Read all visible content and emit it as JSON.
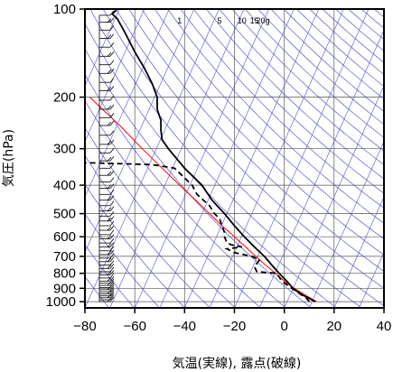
{
  "chart_data": {
    "type": "line",
    "title": "",
    "xlabel": "気温(実線), 露点(破線)",
    "ylabel": "気圧(hPa)",
    "xlim": [
      -80,
      40
    ],
    "ylim": [
      1050,
      100
    ],
    "y_scale": "log",
    "x_ticks": [
      -80,
      -60,
      -40,
      -20,
      0,
      20,
      40
    ],
    "x_tick_labels": [
      "−80",
      "−60",
      "−40",
      "−20",
      "0",
      "20",
      "40"
    ],
    "y_ticks": [
      100,
      200,
      300,
      400,
      500,
      600,
      700,
      800,
      900,
      1000
    ],
    "y_tick_labels": [
      "100",
      "200",
      "300",
      "400",
      "500",
      "600",
      "700",
      "800",
      "900",
      "1000"
    ],
    "grid": true,
    "legend": "none",
    "mixing_ratio_labels": [
      {
        "text": "1",
        "t": -42
      },
      {
        "text": "5",
        "t": -26
      },
      {
        "text": "10",
        "t": -17
      },
      {
        "text": "15",
        "t": -12
      },
      {
        "text": "20g",
        "t": -8.5
      }
    ],
    "series": [
      {
        "role": "temperature",
        "style": "solid",
        "color": "#000000",
        "points": [
          [
            1000,
            12.5
          ],
          [
            975,
            10
          ],
          [
            950,
            7.5
          ],
          [
            925,
            5.5
          ],
          [
            900,
            3.5
          ],
          [
            850,
            1
          ],
          [
            800,
            -2
          ],
          [
            750,
            -5
          ],
          [
            700,
            -8
          ],
          [
            650,
            -12
          ],
          [
            600,
            -16
          ],
          [
            550,
            -20
          ],
          [
            500,
            -24
          ],
          [
            450,
            -29
          ],
          [
            400,
            -33
          ],
          [
            350,
            -40
          ],
          [
            300,
            -46.5
          ],
          [
            280,
            -49
          ],
          [
            260,
            -49.5
          ],
          [
            240,
            -49.5
          ],
          [
            220,
            -51
          ],
          [
            200,
            -51
          ],
          [
            180,
            -53
          ],
          [
            160,
            -56
          ],
          [
            140,
            -60
          ],
          [
            120,
            -64
          ],
          [
            108,
            -67
          ],
          [
            104,
            -69
          ],
          [
            100,
            -67
          ]
        ]
      },
      {
        "role": "dewpoint",
        "style": "dashed",
        "color": "#000000",
        "points": [
          [
            1000,
            10
          ],
          [
            975,
            9
          ],
          [
            950,
            7
          ],
          [
            925,
            5
          ],
          [
            900,
            3
          ],
          [
            850,
            -1
          ],
          [
            800,
            -3
          ],
          [
            790,
            -11
          ],
          [
            760,
            -12
          ],
          [
            720,
            -10
          ],
          [
            700,
            -13
          ],
          [
            680,
            -20
          ],
          [
            660,
            -23
          ],
          [
            650,
            -17
          ],
          [
            640,
            -21
          ],
          [
            630,
            -23
          ],
          [
            600,
            -24
          ],
          [
            580,
            -24
          ],
          [
            550,
            -25
          ],
          [
            520,
            -26
          ],
          [
            500,
            -28
          ],
          [
            470,
            -30
          ],
          [
            430,
            -35
          ],
          [
            400,
            -37
          ],
          [
            350,
            -44
          ],
          [
            340,
            -53
          ],
          [
            335,
            -80
          ]
        ]
      },
      {
        "role": "parcel",
        "style": "solid",
        "color": "#ff0000",
        "points": [
          [
            1000,
            13
          ],
          [
            950,
            8.5
          ],
          [
            900,
            4
          ],
          [
            850,
            0
          ],
          [
            800,
            -3.5
          ],
          [
            750,
            -7.5
          ],
          [
            700,
            -11.5
          ],
          [
            650,
            -15.5
          ],
          [
            600,
            -20
          ],
          [
            550,
            -25
          ],
          [
            500,
            -30
          ],
          [
            450,
            -35.5
          ],
          [
            400,
            -42
          ],
          [
            350,
            -49
          ],
          [
            300,
            -57
          ],
          [
            250,
            -66
          ],
          [
            220,
            -73
          ],
          [
            200,
            -78
          ]
        ]
      }
    ],
    "wind_barbs_pressures": [
      1000,
      985,
      970,
      955,
      940,
      925,
      910,
      895,
      880,
      865,
      850,
      830,
      810,
      790,
      770,
      750,
      730,
      710,
      690,
      670,
      650,
      630,
      610,
      590,
      570,
      550,
      530,
      510,
      490,
      470,
      450,
      430,
      410,
      390,
      370,
      350,
      330,
      310,
      290,
      270,
      250,
      235,
      220,
      205,
      190,
      178,
      166,
      155,
      145,
      135,
      126,
      118,
      111,
      105
    ]
  }
}
